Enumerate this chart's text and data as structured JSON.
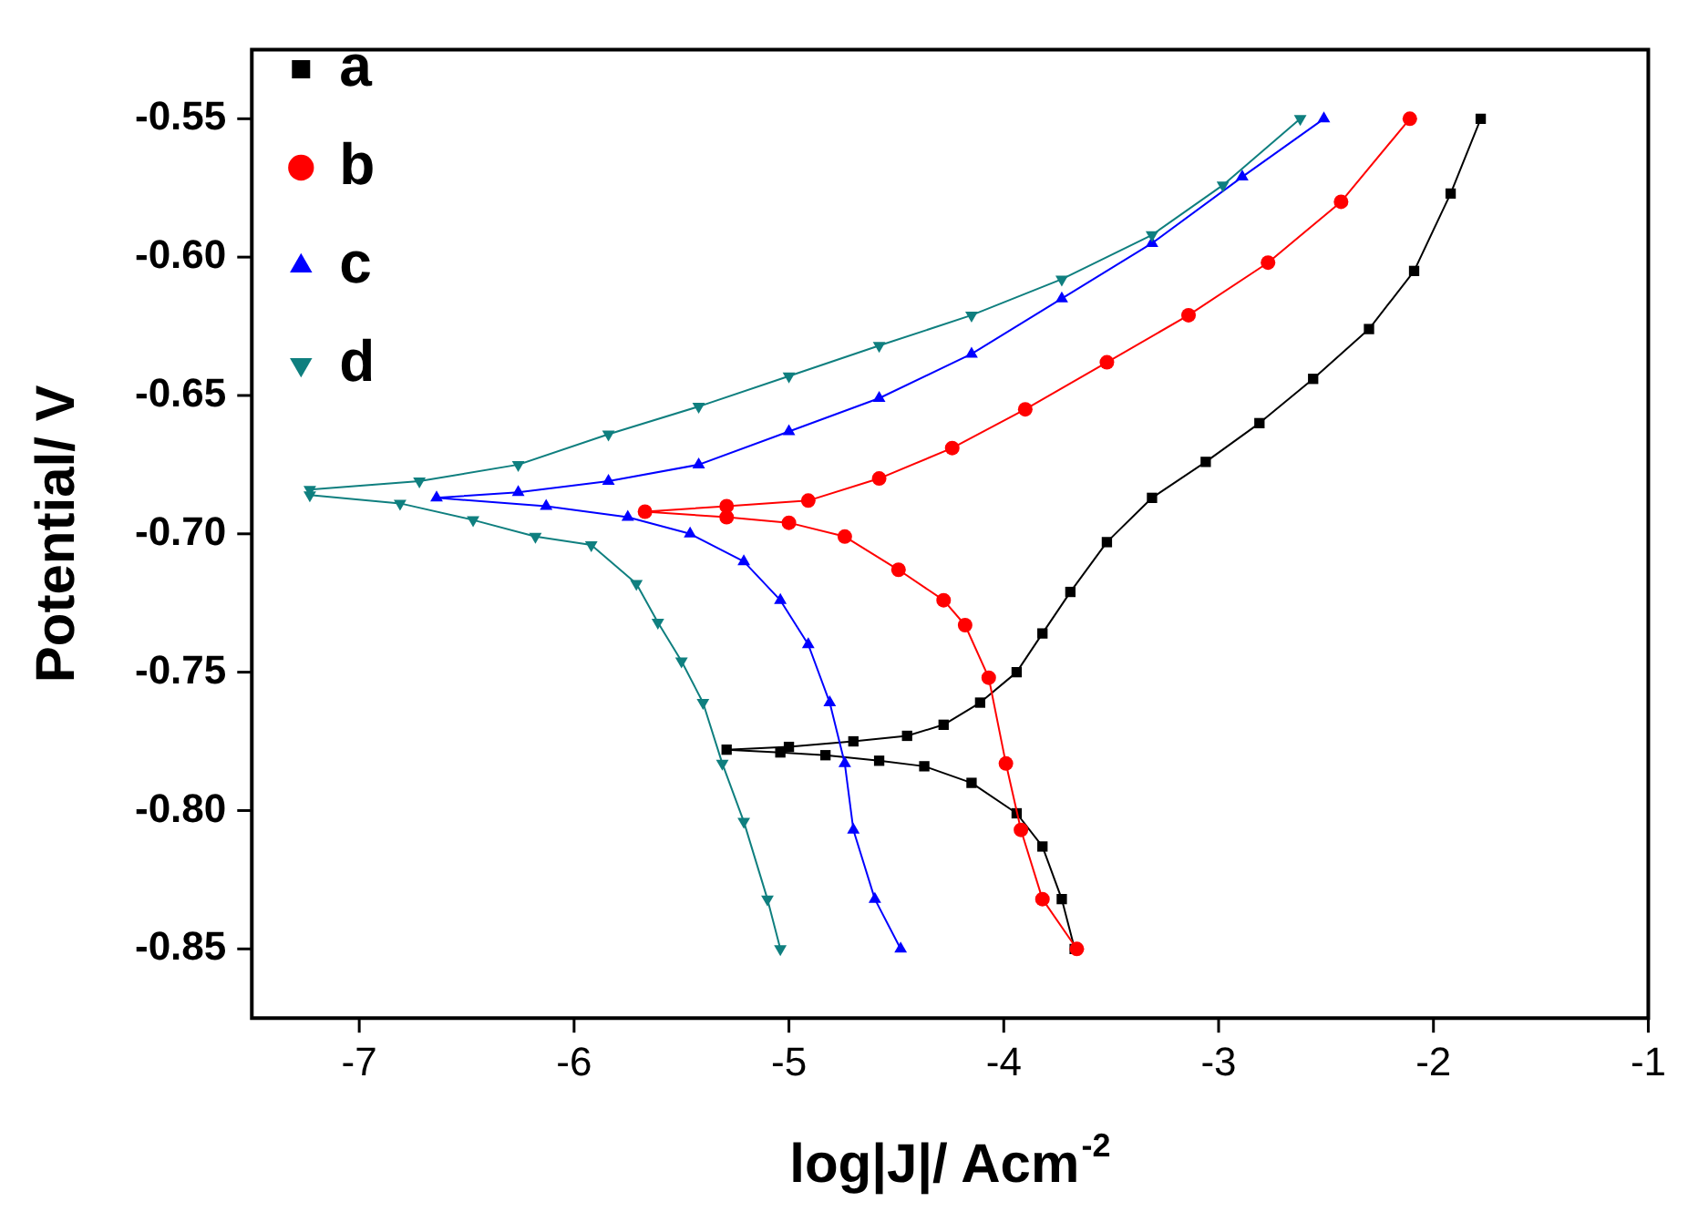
{
  "chart_data": {
    "type": "line",
    "xlabel": "log|J|/ Acm$^{-2}$",
    "ylabel": "Potential/ V",
    "xlim": [
      -7.5,
      -1
    ],
    "ylim": [
      -0.875,
      -0.525
    ],
    "xticks": [
      -7,
      -6,
      -5,
      -4,
      -3,
      -2,
      -1
    ],
    "yticks": [
      {
        "value": -0.55,
        "label": "-0.55"
      },
      {
        "value": -0.6,
        "label": "-0.60"
      },
      {
        "value": -0.65,
        "label": "-0.65"
      },
      {
        "value": -0.7,
        "label": "-0.70"
      },
      {
        "value": -0.75,
        "label": "-0.75"
      },
      {
        "value": -0.8,
        "label": "-0.80"
      },
      {
        "value": -0.85,
        "label": "-0.85"
      }
    ],
    "grid": false,
    "legend": "top left",
    "line_style": "solid",
    "series": [
      {
        "name": "a",
        "color": "#000000",
        "marker": "square",
        "x": [
          -3.67,
          -3.73,
          -3.82,
          -3.94,
          -4.15,
          -4.37,
          -4.58,
          -4.83,
          -5.04,
          -5.29,
          -5.0,
          -4.7,
          -4.45,
          -4.28,
          -4.11,
          -3.94,
          -3.82,
          -3.69,
          -3.52,
          -3.31,
          -3.06,
          -2.81,
          -2.56,
          -2.3,
          -2.09,
          -1.92,
          -1.78
        ],
        "values": [
          -0.85,
          -0.832,
          -0.813,
          -0.801,
          -0.79,
          -0.784,
          -0.782,
          -0.78,
          -0.779,
          -0.778,
          -0.777,
          -0.775,
          -0.773,
          -0.769,
          -0.761,
          -0.75,
          -0.736,
          -0.721,
          -0.703,
          -0.687,
          -0.674,
          -0.66,
          -0.644,
          -0.626,
          -0.605,
          -0.577,
          -0.55
        ]
      },
      {
        "name": "b",
        "color": "#ff0000",
        "marker": "circle",
        "x": [
          -3.66,
          -3.82,
          -3.92,
          -3.99,
          -4.07,
          -4.18,
          -4.28,
          -4.49,
          -4.74,
          -5.0,
          -5.29,
          -5.67,
          -5.29,
          -4.91,
          -4.58,
          -4.24,
          -3.9,
          -3.52,
          -3.14,
          -2.77,
          -2.43,
          -2.11
        ],
        "values": [
          -0.85,
          -0.832,
          -0.807,
          -0.783,
          -0.752,
          -0.733,
          -0.724,
          -0.713,
          -0.701,
          -0.696,
          -0.694,
          -0.692,
          -0.69,
          -0.688,
          -0.68,
          -0.669,
          -0.655,
          -0.638,
          -0.621,
          -0.602,
          -0.58,
          -0.55
        ]
      },
      {
        "name": "c",
        "color": "#0000ff",
        "marker": "triangle",
        "x": [
          -4.48,
          -4.6,
          -4.7,
          -4.74,
          -4.81,
          -4.91,
          -5.04,
          -5.21,
          -5.46,
          -5.75,
          -6.13,
          -6.64,
          -6.26,
          -5.84,
          -5.42,
          -5.0,
          -4.58,
          -4.15,
          -3.73,
          -3.31,
          -2.89,
          -2.51
        ],
        "values": [
          -0.85,
          -0.832,
          -0.807,
          -0.783,
          -0.761,
          -0.74,
          -0.724,
          -0.71,
          -0.7,
          -0.694,
          -0.69,
          -0.687,
          -0.685,
          -0.681,
          -0.675,
          -0.663,
          -0.651,
          -0.635,
          -0.615,
          -0.595,
          -0.571,
          -0.55
        ]
      },
      {
        "name": "d",
        "color": "#0f7f7f",
        "marker": "triangle-down",
        "x": [
          -5.04,
          -5.1,
          -5.21,
          -5.31,
          -5.4,
          -5.5,
          -5.61,
          -5.71,
          -5.92,
          -6.18,
          -6.47,
          -6.81,
          -7.23,
          -7.23,
          -6.72,
          -6.26,
          -5.84,
          -5.42,
          -5.0,
          -4.58,
          -4.15,
          -3.73,
          -3.31,
          -2.98,
          -2.62
        ],
        "values": [
          -0.85,
          -0.832,
          -0.804,
          -0.783,
          -0.761,
          -0.746,
          -0.732,
          -0.718,
          -0.704,
          -0.701,
          -0.695,
          -0.689,
          -0.686,
          -0.684,
          -0.681,
          -0.675,
          -0.664,
          -0.654,
          -0.643,
          -0.632,
          -0.621,
          -0.608,
          -0.592,
          -0.574,
          -0.55
        ]
      }
    ]
  }
}
